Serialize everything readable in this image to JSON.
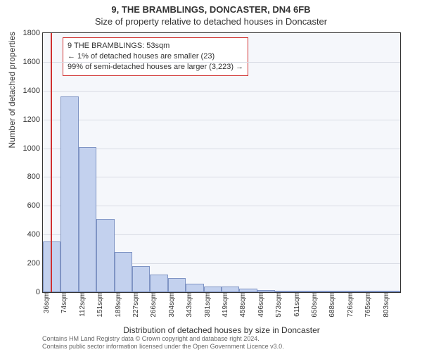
{
  "titles": {
    "line1": "9, THE BRAMBLINGS, DONCASTER, DN4 6FB",
    "line2": "Size of property relative to detached houses in Doncaster"
  },
  "axes": {
    "y_label": "Number of detached properties",
    "x_label": "Distribution of detached houses by size in Doncaster",
    "ylim": [
      0,
      1800
    ],
    "ytick_step": 200,
    "x_bin_width_sqm": 38.5,
    "x_start_sqm": 36,
    "x_tick_labels": [
      "36sqm",
      "74sqm",
      "112sqm",
      "151sqm",
      "189sqm",
      "227sqm",
      "266sqm",
      "304sqm",
      "343sqm",
      "381sqm",
      "419sqm",
      "458sqm",
      "496sqm",
      "573sqm",
      "611sqm",
      "650sqm",
      "688sqm",
      "726sqm",
      "765sqm",
      "803sqm"
    ]
  },
  "chart": {
    "type": "histogram",
    "plot_bg": "#f5f7fb",
    "grid_color": "#d8dbe4",
    "bar_fill": "#c3d1ee",
    "bar_border": "#7f94c4",
    "marker_color": "#d03030",
    "marker_sqm": 53,
    "values": [
      350,
      1360,
      1010,
      510,
      280,
      180,
      120,
      100,
      60,
      40,
      40,
      25,
      15,
      10,
      5,
      5,
      3,
      2,
      2,
      1
    ]
  },
  "legend": {
    "line1": "9 THE BRAMBLINGS: 53sqm",
    "line2": "← 1% of detached houses are smaller (23)",
    "line3": "99% of semi-detached houses are larger (3,223) →"
  },
  "footer": {
    "line1": "Contains HM Land Registry data © Crown copyright and database right 2024.",
    "line2": "Contains public sector information licensed under the Open Government Licence v3.0."
  },
  "style": {
    "title_fontsize": 13,
    "axis_label_fontsize": 12,
    "tick_fontsize": 11,
    "legend_fontsize": 11,
    "footer_fontsize": 9
  }
}
